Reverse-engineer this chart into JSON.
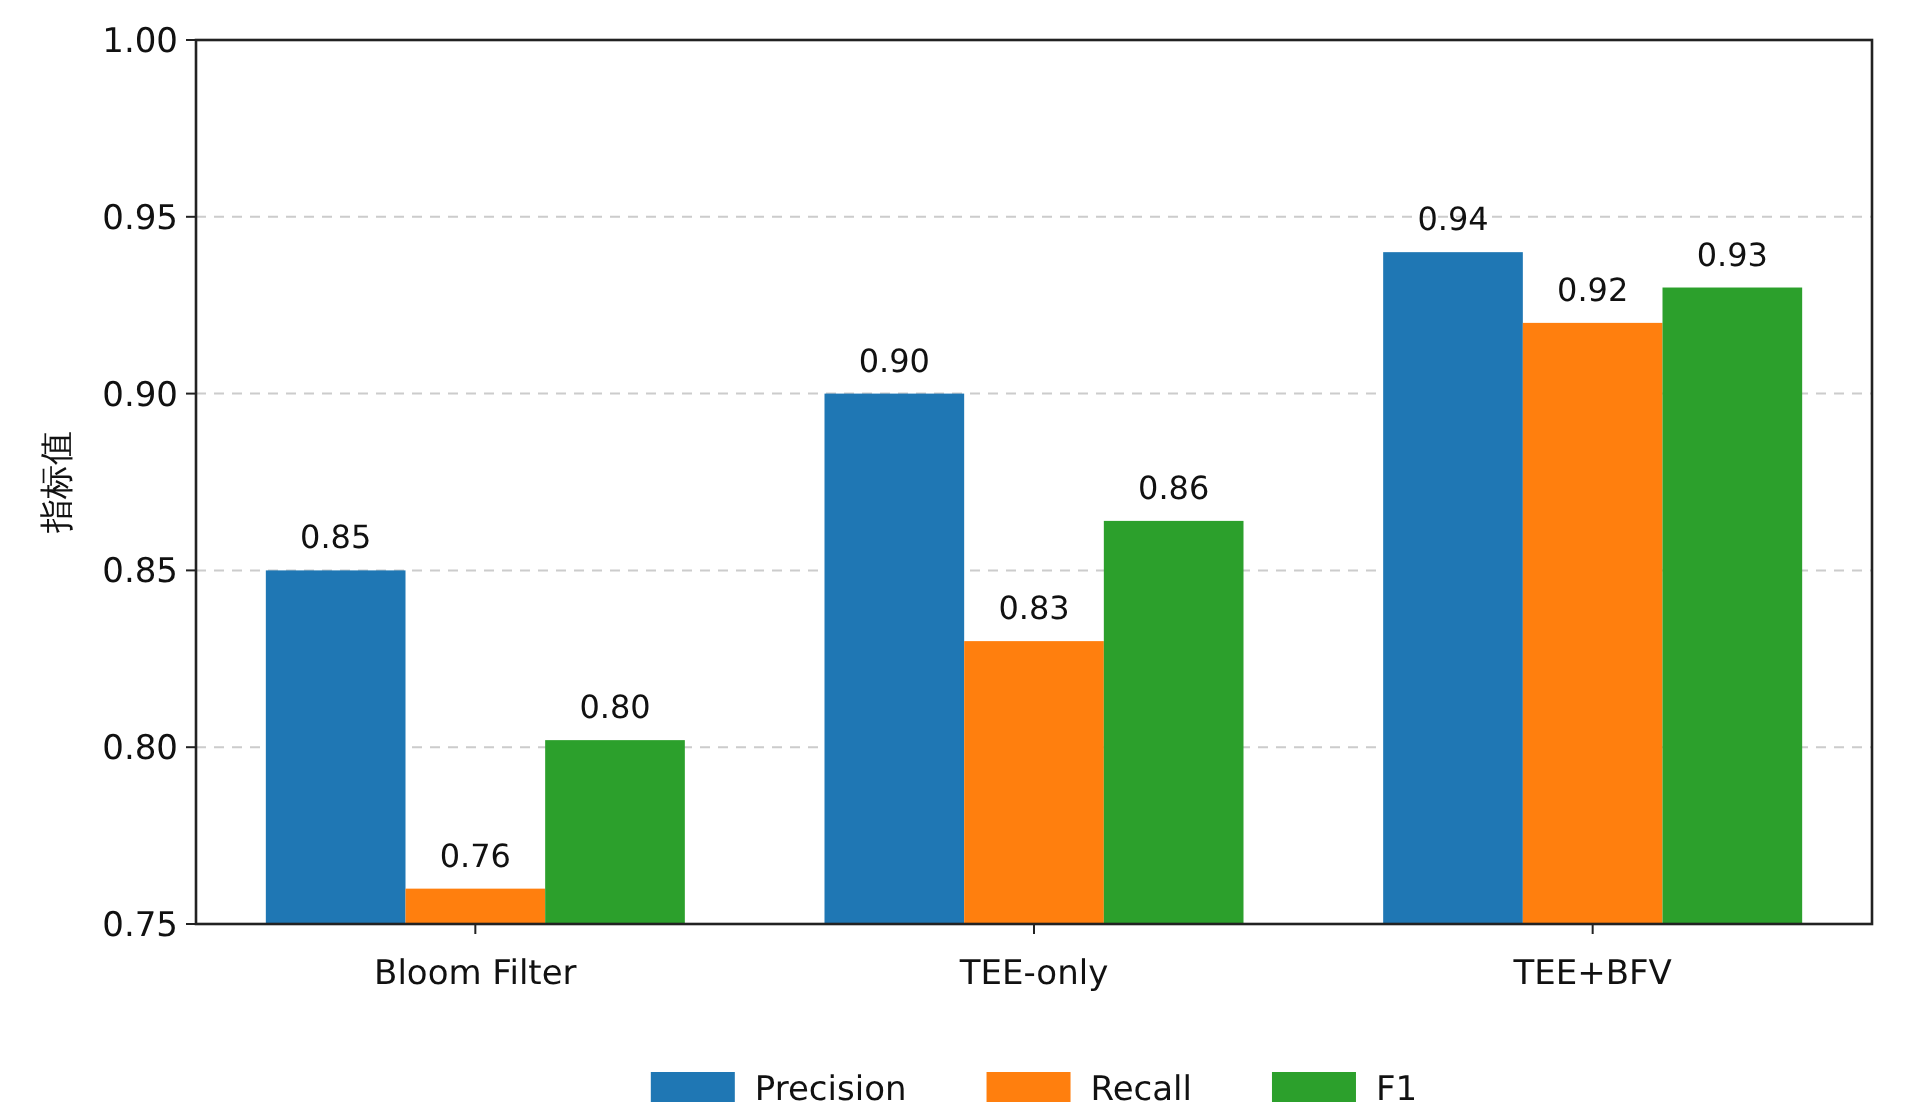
{
  "chart_data": {
    "type": "bar",
    "ylabel": "指标值",
    "categories": [
      "Bloom Filter",
      "TEE-only",
      "TEE+BFV"
    ],
    "series": [
      {
        "name": "Precision",
        "color": "#1f77b4",
        "values": [
          0.85,
          0.9,
          0.94
        ],
        "value_labels": [
          "0.85",
          "0.90",
          "0.94"
        ]
      },
      {
        "name": "Recall",
        "color": "#ff7f0e",
        "values": [
          0.76,
          0.83,
          0.92
        ],
        "value_labels": [
          "0.76",
          "0.83",
          "0.92"
        ]
      },
      {
        "name": "F1",
        "color": "#2ca02c",
        "values": [
          0.802,
          0.864,
          0.93
        ],
        "value_labels": [
          "0.80",
          "0.86",
          "0.93"
        ]
      }
    ],
    "ylim": [
      0.75,
      1.0
    ],
    "yticks": [
      {
        "value": 0.75,
        "label": "0.75"
      },
      {
        "value": 0.8,
        "label": "0.80"
      },
      {
        "value": 0.85,
        "label": "0.85"
      },
      {
        "value": 0.9,
        "label": "0.90"
      },
      {
        "value": 0.95,
        "label": "0.95"
      },
      {
        "value": 1.0,
        "label": "1.00"
      }
    ],
    "grid": "y",
    "legend": "bottom"
  }
}
